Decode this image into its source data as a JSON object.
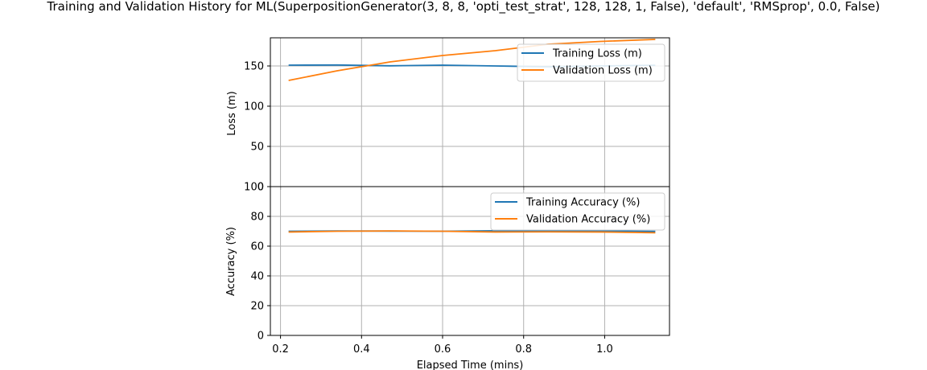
{
  "chart_data": [
    {
      "type": "line",
      "title": "Training and Validation History for ML(SuperpositionGenerator(3, 8, 8, 'opti_test_strat', 128, 128, 1, False), 'default', 'RMSprop', 0.0, False)",
      "xlabel": "",
      "ylabel": "Loss (m)",
      "xlim": [
        0.175,
        1.16
      ],
      "ylim": [
        0,
        185
      ],
      "yticks": [
        "0",
        "50",
        "100",
        "150"
      ],
      "grid": true,
      "legend_position": "top-right",
      "series": [
        {
          "name": "Training Loss (m)",
          "color": "#1f77b4",
          "x": [
            0.22,
            0.34,
            0.47,
            0.6,
            0.73,
            0.86,
            0.99,
            1.125
          ],
          "y": [
            151,
            151.2,
            150.2,
            151,
            150,
            149,
            150,
            150.8
          ]
        },
        {
          "name": "Validation Loss (m)",
          "color": "#ff7f0e",
          "x": [
            0.22,
            0.34,
            0.47,
            0.6,
            0.73,
            0.86,
            0.99,
            1.125
          ],
          "y": [
            132,
            144,
            155,
            163,
            169,
            177,
            180.5,
            183
          ]
        }
      ]
    },
    {
      "type": "line",
      "title": "",
      "xlabel": "Elapsed Time (mins)",
      "ylabel": "Accuracy (%)",
      "xlim": [
        0.175,
        1.16
      ],
      "ylim": [
        0,
        100
      ],
      "xticks": [
        "0.2",
        "0.4",
        "0.6",
        "0.8",
        "1.0"
      ],
      "yticks": [
        "0",
        "20",
        "40",
        "60",
        "80",
        "100"
      ],
      "grid": true,
      "legend_position": "top-right",
      "series": [
        {
          "name": "Training Accuracy (%)",
          "color": "#1f77b4",
          "x": [
            0.22,
            0.34,
            0.47,
            0.6,
            0.73,
            0.86,
            0.99,
            1.125
          ],
          "y": [
            70,
            70.2,
            70.1,
            70,
            70.3,
            70.3,
            70.2,
            69.9
          ]
        },
        {
          "name": "Validation Accuracy (%)",
          "color": "#ff7f0e",
          "x": [
            0.22,
            0.34,
            0.47,
            0.6,
            0.73,
            0.86,
            0.99,
            1.125
          ],
          "y": [
            69.5,
            70,
            70.2,
            70,
            69.5,
            69.6,
            69.5,
            69
          ]
        }
      ]
    }
  ]
}
